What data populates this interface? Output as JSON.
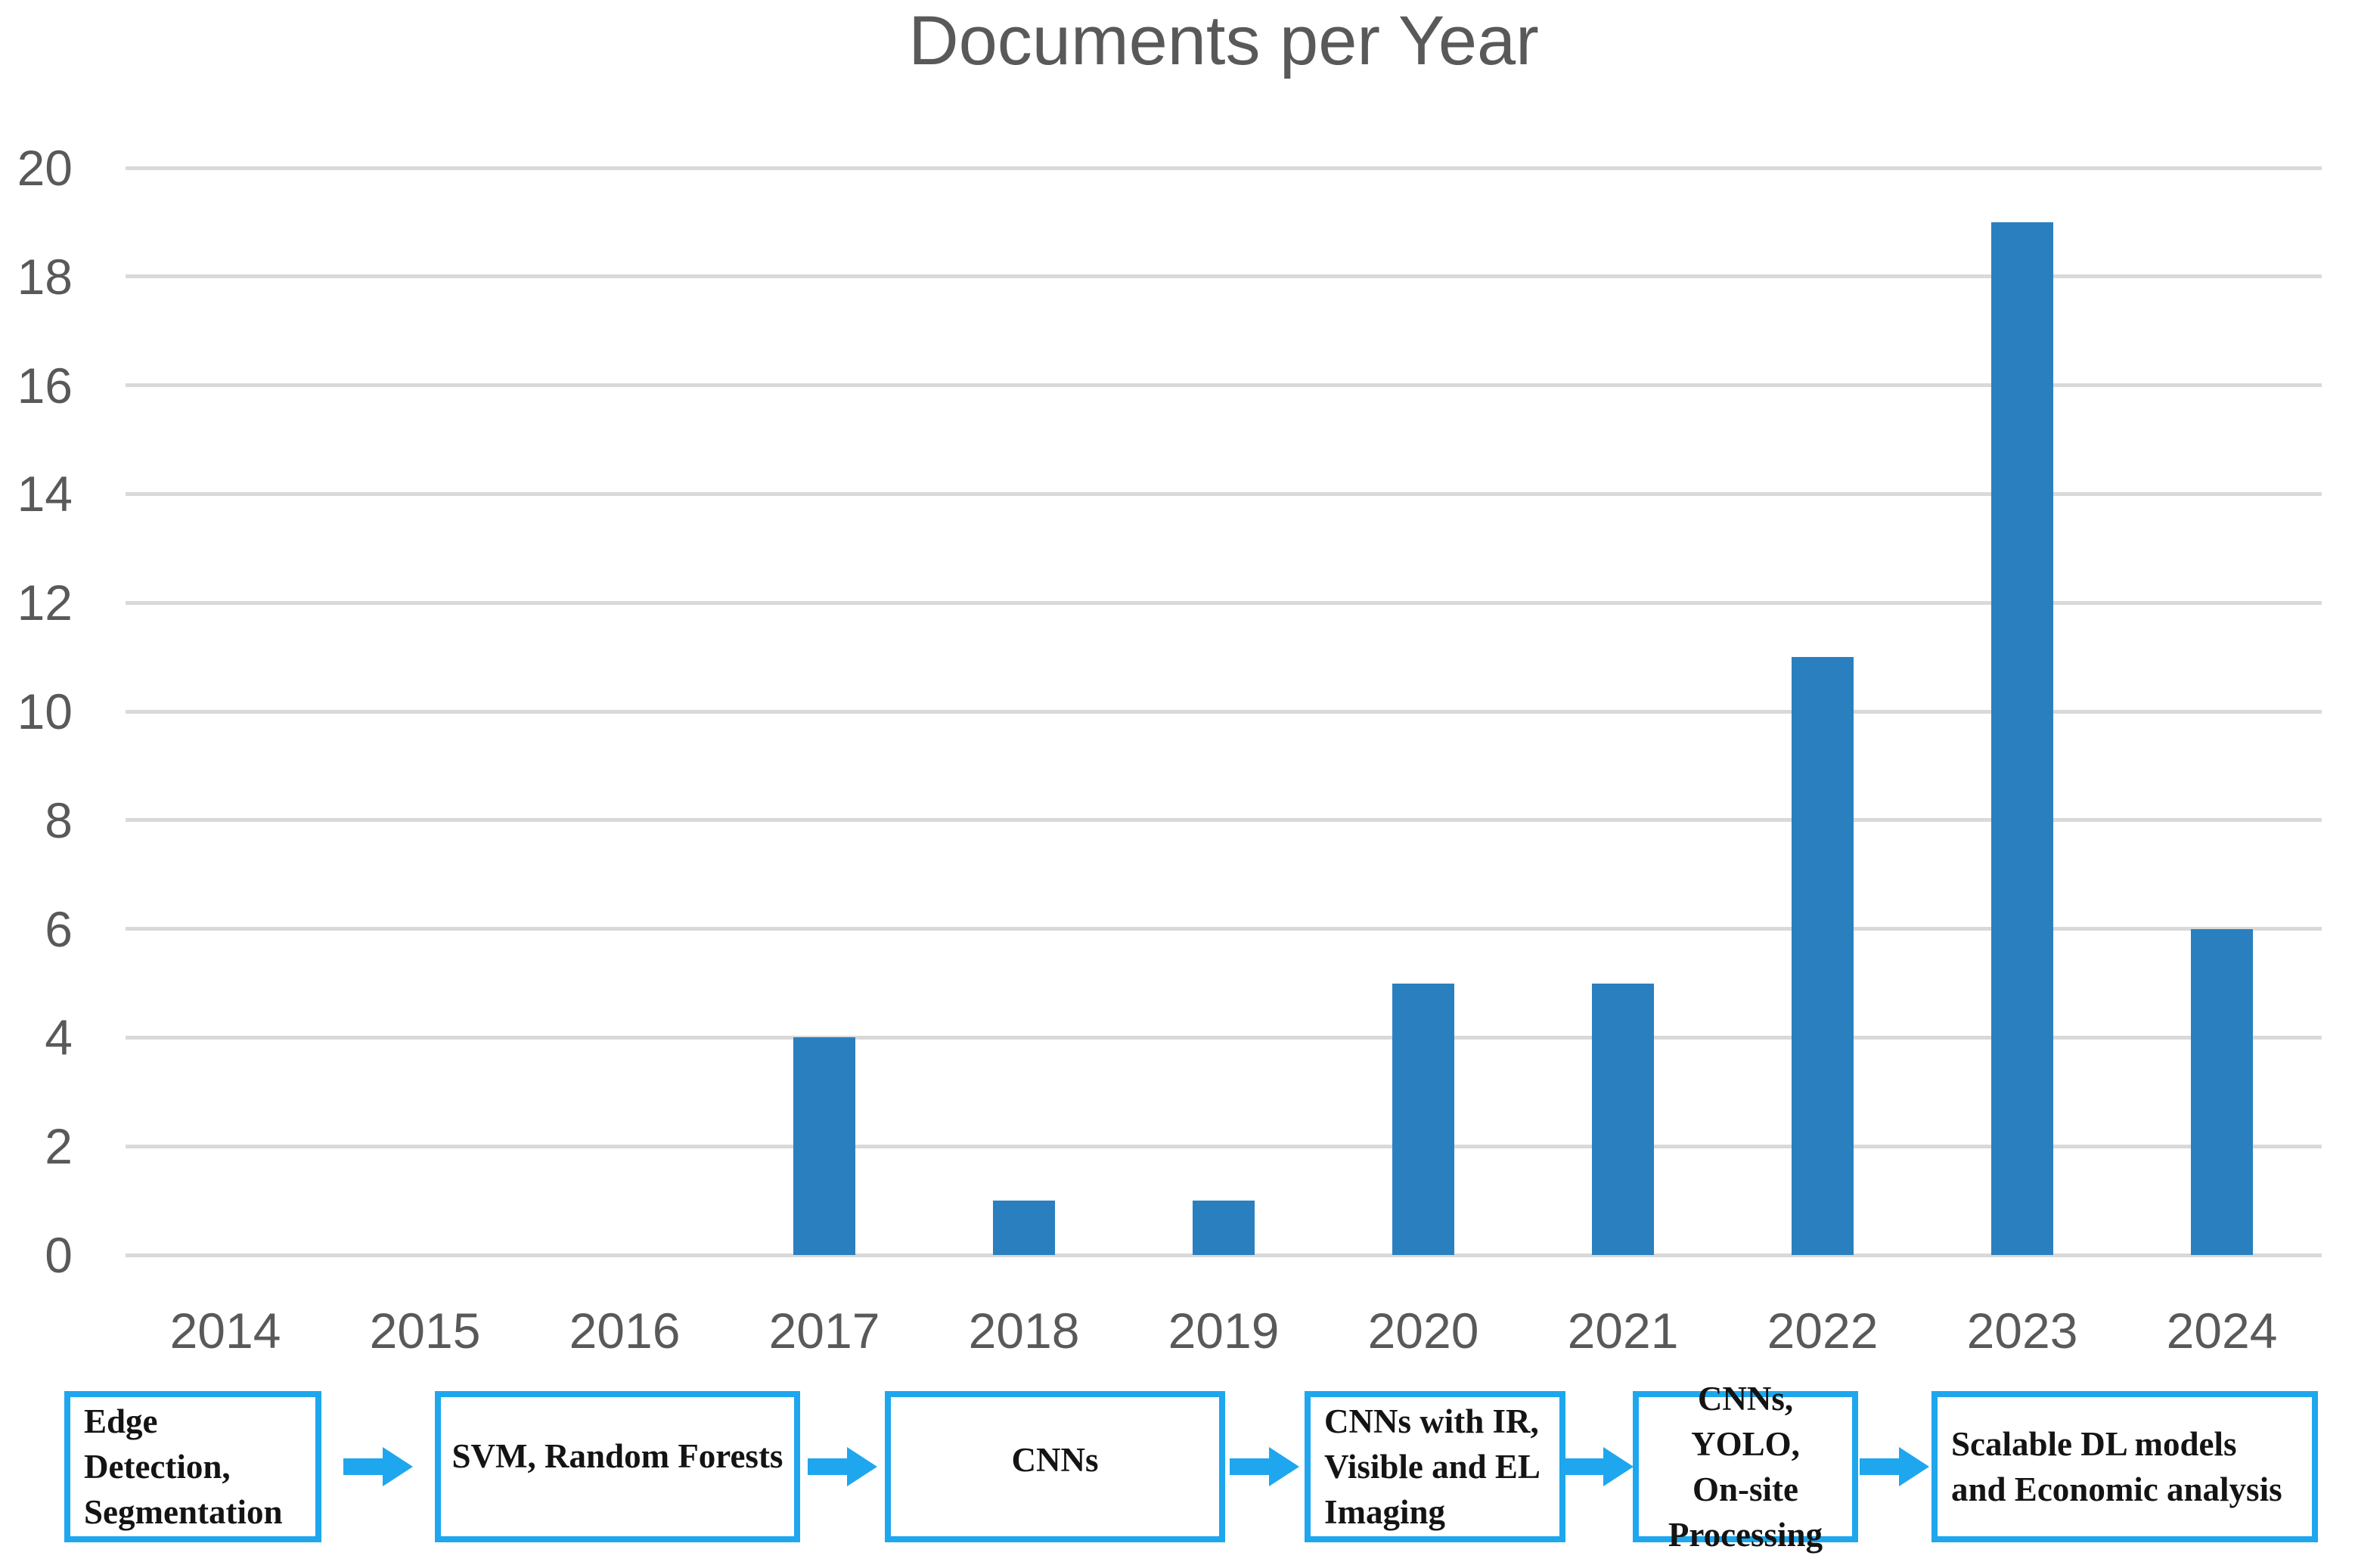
{
  "chart_data": {
    "type": "bar",
    "title": "Documents per Year",
    "categories": [
      "2014",
      "2015",
      "2016",
      "2017",
      "2018",
      "2019",
      "2020",
      "2021",
      "2022",
      "2023",
      "2024"
    ],
    "values": [
      0,
      0,
      0,
      4,
      1,
      1,
      5,
      5,
      11,
      19,
      6
    ],
    "xlabel": "",
    "ylabel": "",
    "ylim": [
      0,
      20
    ],
    "ytick_step": 2,
    "ytick_labels": [
      "0",
      "2",
      "4",
      "6",
      "8",
      "10",
      "12",
      "14",
      "16",
      "18",
      "20"
    ],
    "grid": "horizontal",
    "legend": "none",
    "bar_color": "#2A80BF",
    "gridline_color": "#D9D9D9",
    "axis_text_color": "#595959"
  },
  "flow": {
    "accent_color": "#1EA7EE",
    "items": [
      {
        "lines": [
          "Edge Detection,",
          "Segmentation"
        ]
      },
      {
        "lines": [
          "SVM, Random Forests"
        ]
      },
      {
        "lines": [
          "CNNs"
        ]
      },
      {
        "lines": [
          "CNNs with IR,",
          "Visible and EL",
          "Imaging"
        ]
      },
      {
        "lines": [
          "CNNs, YOLO,",
          "On-site",
          "Processing"
        ]
      },
      {
        "lines": [
          "Scalable DL models",
          "and Economic analysis"
        ]
      }
    ]
  }
}
